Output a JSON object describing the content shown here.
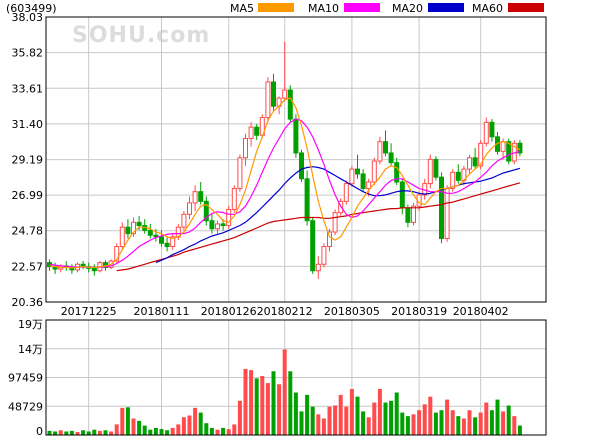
{
  "stock_code": "(603499)",
  "watermark": "SOHU.com",
  "colors": {
    "up": "#ff4b4b",
    "down": "#00a000",
    "ma5": "#ff9900",
    "ma10": "#ff00ff",
    "ma20": "#0000cc",
    "ma60": "#cc0000",
    "grid": "#c8c8c8",
    "frame": "#000000"
  },
  "legend": [
    {
      "name": "MA5",
      "color": "#ff9900"
    },
    {
      "name": "MA10",
      "color": "#ff00ff"
    },
    {
      "name": "MA20",
      "color": "#0000cc"
    },
    {
      "name": "MA60",
      "color": "#cc0000"
    }
  ],
  "chart_data": [
    {
      "type": "candlestick",
      "ylim": [
        20.36,
        38.03
      ],
      "y_ticks": [
        "38.03",
        "35.82",
        "33.61",
        "31.40",
        "29.19",
        "26.99",
        "24.78",
        "22.57",
        "20.36"
      ],
      "x_tick_labels": [
        {
          "label": "20171225",
          "index": 7
        },
        {
          "label": "20180111",
          "index": 20
        },
        {
          "label": "20180126",
          "index": 32
        },
        {
          "label": "20180212",
          "index": 42
        },
        {
          "label": "20180305",
          "index": 54
        },
        {
          "label": "20180319",
          "index": 66
        },
        {
          "label": "20180402",
          "index": 77
        }
      ],
      "candles": [
        [
          22.8,
          23.0,
          22.3,
          22.55
        ],
        [
          22.55,
          22.8,
          22.1,
          22.4
        ],
        [
          22.4,
          22.7,
          22.2,
          22.6
        ],
        [
          22.6,
          22.9,
          22.3,
          22.5
        ],
        [
          22.5,
          22.7,
          22.1,
          22.35
        ],
        [
          22.35,
          22.8,
          22.2,
          22.7
        ],
        [
          22.7,
          22.9,
          22.4,
          22.55
        ],
        [
          22.55,
          22.8,
          22.2,
          22.45
        ],
        [
          22.45,
          22.7,
          22.0,
          22.3
        ],
        [
          22.3,
          22.9,
          22.2,
          22.8
        ],
        [
          22.8,
          22.95,
          22.3,
          22.5
        ],
        [
          22.5,
          23.0,
          22.4,
          22.9
        ],
        [
          22.9,
          24.0,
          22.8,
          23.8
        ],
        [
          23.8,
          25.3,
          23.6,
          25.0
        ],
        [
          25.0,
          25.5,
          24.3,
          24.6
        ],
        [
          24.6,
          25.6,
          24.4,
          25.3
        ],
        [
          25.3,
          25.7,
          24.8,
          25.1
        ],
        [
          25.1,
          25.5,
          24.6,
          24.8
        ],
        [
          24.8,
          25.2,
          24.3,
          24.5
        ],
        [
          24.5,
          24.9,
          24.1,
          24.4
        ],
        [
          24.4,
          24.8,
          23.8,
          24.0
        ],
        [
          24.0,
          24.4,
          23.5,
          23.8
        ],
        [
          23.8,
          24.6,
          23.6,
          24.4
        ],
        [
          24.4,
          25.2,
          24.2,
          25.0
        ],
        [
          25.0,
          26.0,
          24.8,
          25.8
        ],
        [
          25.8,
          26.9,
          25.5,
          26.5
        ],
        [
          26.5,
          27.6,
          26.0,
          27.2
        ],
        [
          27.2,
          27.8,
          26.4,
          26.6
        ],
        [
          26.6,
          26.9,
          25.1,
          25.4
        ],
        [
          25.4,
          25.8,
          24.6,
          24.9
        ],
        [
          24.9,
          25.4,
          24.6,
          25.2
        ],
        [
          25.2,
          25.5,
          24.8,
          25.1
        ],
        [
          25.1,
          26.3,
          24.9,
          26.1
        ],
        [
          26.1,
          27.6,
          25.9,
          27.4
        ],
        [
          27.4,
          29.5,
          27.2,
          29.3
        ],
        [
          29.3,
          30.8,
          28.8,
          30.5
        ],
        [
          30.5,
          31.5,
          30.0,
          31.2
        ],
        [
          31.2,
          31.4,
          30.4,
          30.7
        ],
        [
          30.7,
          32.0,
          30.5,
          31.8
        ],
        [
          31.8,
          34.3,
          31.5,
          34.0
        ],
        [
          34.0,
          34.5,
          32.2,
          32.5
        ],
        [
          32.5,
          33.1,
          32.0,
          33.0
        ],
        [
          33.0,
          36.5,
          32.8,
          33.5
        ],
        [
          33.5,
          33.8,
          31.5,
          31.7
        ],
        [
          31.7,
          32.0,
          29.3,
          29.6
        ],
        [
          29.6,
          29.8,
          27.8,
          28.0
        ],
        [
          28.0,
          28.5,
          25.1,
          25.4
        ],
        [
          25.4,
          25.6,
          22.1,
          22.3
        ],
        [
          22.3,
          23.2,
          21.8,
          22.7
        ],
        [
          22.7,
          24.0,
          22.5,
          23.8
        ],
        [
          23.8,
          24.9,
          23.5,
          24.7
        ],
        [
          24.7,
          26.1,
          24.5,
          25.9
        ],
        [
          25.9,
          26.8,
          25.7,
          26.6
        ],
        [
          26.6,
          27.9,
          26.4,
          27.7
        ],
        [
          27.7,
          28.8,
          27.5,
          28.6
        ],
        [
          28.6,
          29.5,
          28.0,
          28.3
        ],
        [
          28.3,
          28.6,
          27.2,
          27.4
        ],
        [
          27.4,
          28.0,
          26.9,
          27.8
        ],
        [
          27.8,
          29.3,
          27.6,
          29.1
        ],
        [
          29.1,
          30.6,
          28.9,
          30.3
        ],
        [
          30.3,
          31.0,
          29.4,
          29.6
        ],
        [
          29.6,
          30.2,
          28.8,
          29.0
        ],
        [
          29.0,
          29.3,
          27.6,
          27.8
        ],
        [
          27.8,
          28.0,
          25.8,
          26.2
        ],
        [
          26.2,
          26.4,
          25.0,
          25.3
        ],
        [
          25.3,
          26.5,
          25.1,
          26.3
        ],
        [
          26.3,
          27.2,
          26.0,
          27.0
        ],
        [
          27.0,
          28.0,
          26.7,
          27.7
        ],
        [
          27.7,
          29.5,
          27.4,
          29.2
        ],
        [
          29.2,
          29.4,
          27.9,
          28.1
        ],
        [
          28.1,
          28.4,
          24.0,
          24.3
        ],
        [
          24.3,
          27.6,
          24.1,
          27.4
        ],
        [
          27.4,
          28.6,
          27.2,
          28.4
        ],
        [
          28.4,
          28.9,
          27.7,
          27.9
        ],
        [
          27.9,
          28.8,
          27.6,
          28.6
        ],
        [
          28.6,
          29.5,
          28.3,
          29.3
        ],
        [
          29.3,
          29.9,
          28.6,
          28.8
        ],
        [
          28.8,
          30.4,
          28.6,
          30.2
        ],
        [
          30.2,
          31.8,
          30.0,
          31.5
        ],
        [
          31.5,
          31.7,
          30.3,
          30.6
        ],
        [
          30.6,
          30.9,
          29.5,
          29.7
        ],
        [
          29.7,
          30.5,
          29.2,
          30.3
        ],
        [
          30.3,
          30.5,
          28.9,
          29.1
        ],
        [
          29.1,
          30.4,
          28.9,
          30.2
        ],
        [
          30.2,
          30.4,
          29.4,
          29.6
        ]
      ],
      "ma5": [
        22.6,
        22.55,
        22.5,
        22.5,
        22.48,
        22.5,
        22.55,
        22.52,
        22.5,
        22.55,
        22.6,
        22.7,
        23.0,
        23.6,
        24.2,
        24.7,
        25.0,
        25.0,
        24.9,
        24.7,
        24.6,
        24.4,
        24.3,
        24.4,
        24.7,
        25.2,
        25.8,
        26.3,
        26.4,
        26.1,
        25.8,
        25.4,
        25.3,
        25.7,
        26.4,
        27.3,
        28.5,
        29.7,
        30.6,
        31.6,
        32.2,
        32.5,
        32.9,
        33.0,
        32.4,
        31.3,
        29.9,
        28.2,
        26.6,
        25.4,
        24.4,
        24.2,
        24.4,
        25.0,
        25.6,
        26.3,
        26.8,
        27.3,
        27.7,
        28.1,
        28.6,
        28.8,
        28.7,
        28.2,
        27.6,
        27.0,
        26.5,
        26.4,
        26.8,
        27.2,
        27.4,
        27.4,
        27.5,
        27.6,
        27.9,
        28.3,
        28.6,
        28.9,
        29.5,
        29.9,
        30.2,
        30.3,
        30.2,
        30.0,
        29.8
      ],
      "ma10": [
        22.7,
        22.65,
        22.6,
        22.58,
        22.55,
        22.53,
        22.52,
        22.52,
        22.51,
        22.52,
        22.55,
        22.6,
        22.75,
        22.95,
        23.2,
        23.5,
        23.8,
        24.0,
        24.2,
        24.35,
        24.45,
        24.55,
        24.6,
        24.6,
        24.6,
        24.7,
        24.95,
        25.3,
        25.6,
        25.85,
        25.95,
        25.9,
        25.8,
        25.8,
        25.95,
        26.3,
        26.9,
        27.6,
        28.4,
        29.2,
        29.9,
        30.5,
        31.1,
        31.5,
        31.7,
        31.6,
        31.2,
        30.6,
        29.8,
        28.9,
        27.9,
        27.0,
        26.3,
        25.8,
        25.6,
        25.7,
        26.0,
        26.4,
        26.8,
        27.2,
        27.6,
        27.9,
        28.0,
        28.0,
        27.8,
        27.6,
        27.4,
        27.3,
        27.2,
        27.2,
        27.2,
        27.1,
        27.1,
        27.2,
        27.4,
        27.6,
        27.8,
        28.1,
        28.4,
        28.8,
        29.1,
        29.3,
        29.5,
        29.6,
        29.7
      ],
      "ma20": [
        null,
        null,
        null,
        null,
        null,
        null,
        null,
        null,
        null,
        null,
        null,
        null,
        null,
        null,
        null,
        null,
        null,
        null,
        null,
        22.8,
        22.95,
        23.1,
        23.3,
        23.45,
        23.6,
        23.8,
        23.95,
        24.15,
        24.3,
        24.45,
        24.55,
        24.65,
        24.8,
        24.95,
        25.1,
        25.3,
        25.6,
        25.9,
        26.25,
        26.6,
        26.95,
        27.3,
        27.7,
        28.05,
        28.35,
        28.6,
        28.7,
        28.75,
        28.7,
        28.6,
        28.4,
        28.2,
        28.0,
        27.8,
        27.6,
        27.4,
        27.2,
        27.05,
        26.95,
        26.95,
        27.0,
        27.1,
        27.2,
        27.25,
        27.25,
        27.2,
        27.1,
        27.05,
        27.1,
        27.2,
        27.35,
        27.4,
        27.5,
        27.6,
        27.7,
        27.75,
        27.8,
        27.85,
        27.95,
        28.05,
        28.2,
        28.35,
        28.45,
        28.55,
        28.65
      ],
      "ma60": [
        null,
        null,
        null,
        null,
        null,
        null,
        null,
        null,
        null,
        null,
        null,
        null,
        22.3,
        22.35,
        22.4,
        22.5,
        22.6,
        22.7,
        22.8,
        22.9,
        23.0,
        23.1,
        23.2,
        23.3,
        23.45,
        23.55,
        23.65,
        23.75,
        23.85,
        23.95,
        24.05,
        24.15,
        24.25,
        24.35,
        24.5,
        24.65,
        24.8,
        24.95,
        25.1,
        25.25,
        25.35,
        25.4,
        25.45,
        25.5,
        25.55,
        25.6,
        25.6,
        25.6,
        25.6,
        25.55,
        25.55,
        25.6,
        25.65,
        25.7,
        25.8,
        25.85,
        25.9,
        25.95,
        26.0,
        26.05,
        26.1,
        26.15,
        26.15,
        26.2,
        26.2,
        26.2,
        26.2,
        26.25,
        26.3,
        26.35,
        26.4,
        26.5,
        26.55,
        26.65,
        26.75,
        26.85,
        26.95,
        27.05,
        27.15,
        27.25,
        27.35,
        27.45,
        27.55,
        27.65,
        27.75
      ]
    },
    {
      "type": "bar",
      "name": "volume",
      "ylim": [
        0,
        194918
      ],
      "y_ticks": [
        {
          "label": "19万",
          "value": 194918
        },
        {
          "label": "14万",
          "value": 146188
        },
        {
          "label": "97459",
          "value": 97459
        },
        {
          "label": "48729",
          "value": 48729
        },
        {
          "label": "0",
          "value": 0
        }
      ],
      "values": [
        7000,
        6000,
        8000,
        6000,
        7000,
        5000,
        8000,
        6000,
        9000,
        7000,
        8000,
        6000,
        18000,
        46000,
        47000,
        28000,
        24000,
        16000,
        9000,
        12000,
        10000,
        8000,
        12000,
        18000,
        30000,
        33000,
        46000,
        38000,
        20000,
        12000,
        9000,
        12000,
        10000,
        18000,
        58000,
        112000,
        110000,
        96000,
        100000,
        88000,
        108000,
        86000,
        145000,
        108000,
        72000,
        40000,
        68000,
        48000,
        35000,
        28000,
        48000,
        50000,
        68000,
        48000,
        78000,
        65000,
        40000,
        30000,
        55000,
        78000,
        55000,
        58000,
        72000,
        38000,
        32000,
        35000,
        42000,
        52000,
        65000,
        38000,
        42000,
        60000,
        42000,
        32000,
        28000,
        42000,
        30000,
        38000,
        55000,
        42000,
        60000,
        40000,
        50000,
        32000,
        16000
      ]
    }
  ]
}
